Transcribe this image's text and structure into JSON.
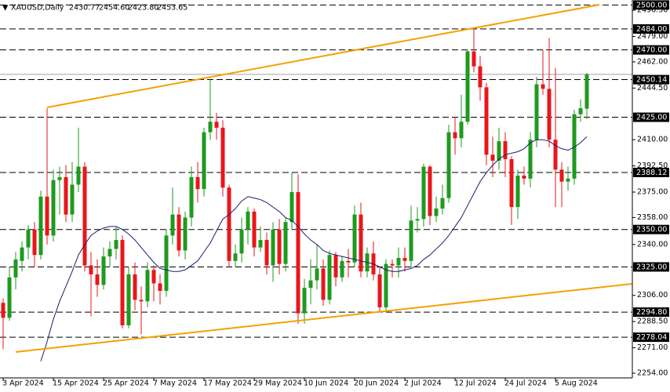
{
  "chart_data": {
    "type": "candlestick",
    "symbol": "XAUUSD,Daily",
    "header_values": [
      "2430.77",
      "2454.60",
      "2423.80",
      "2453.65"
    ],
    "categories": [
      "3 Apr 2024",
      null,
      null,
      null,
      null,
      null,
      null,
      null,
      "15 Apr 2024",
      null,
      null,
      null,
      null,
      null,
      null,
      null,
      "25 Apr 2024",
      null,
      null,
      null,
      null,
      null,
      null,
      null,
      "7 May 2024",
      null,
      null,
      null,
      null,
      null,
      null,
      null,
      "17 May 2024",
      null,
      null,
      null,
      null,
      null,
      null,
      null,
      "29 May 2024",
      null,
      null,
      null,
      null,
      null,
      null,
      null,
      "10 Jun 2024",
      null,
      null,
      null,
      null,
      null,
      null,
      null,
      "20 Jun 2024",
      null,
      null,
      null,
      null,
      null,
      null,
      null,
      "2 Jul 2024",
      null,
      null,
      null,
      null,
      null,
      null,
      null,
      "12 Jul 2024",
      null,
      null,
      null,
      null,
      null,
      null,
      null,
      "24 Jul 2024",
      null,
      null,
      null,
      null,
      null,
      null,
      null,
      "5 Aug 2024",
      null,
      null,
      null,
      null,
      null
    ],
    "open": [
      2301,
      2291,
      2318,
      2329,
      2338,
      2350,
      2333,
      2372,
      2346,
      2383,
      2385,
      2360,
      2380,
      2392,
      2326,
      2320,
      2313,
      2332,
      2337,
      2343,
      2286,
      2320,
      2303,
      2302,
      2323,
      2314,
      2309,
      2346,
      2360,
      2336,
      2358,
      2385,
      2377,
      2415,
      2422,
      2418,
      2378,
      2329,
      2334,
      2350,
      2362,
      2338,
      2343,
      2326,
      2350,
      2327,
      2355,
      2375,
      2294,
      2311,
      2316,
      2324,
      2303,
      2333,
      2318,
      2329,
      2328,
      2360,
      2322,
      2334,
      2320,
      2298,
      2327,
      2326,
      2331,
      2329,
      2356,
      2357,
      2392,
      2359,
      2364,
      2371,
      2415,
      2411,
      2422,
      2469,
      2459,
      2445,
      2400,
      2396,
      2409,
      2397,
      2365,
      2386,
      2384,
      2410,
      2447,
      2444,
      2410,
      2390,
      2382,
      2384,
      2427,
      2430.77
    ],
    "high": [
      2304,
      2325,
      2335,
      2342,
      2353,
      2355,
      2376,
      2431,
      2390,
      2392,
      2393,
      2395,
      2418,
      2395,
      2335,
      2330,
      2338,
      2342,
      2352,
      2346,
      2325,
      2328,
      2312,
      2328,
      2326,
      2320,
      2350,
      2378,
      2365,
      2362,
      2392,
      2395,
      2418,
      2451,
      2428,
      2423,
      2380,
      2340,
      2358,
      2365,
      2364,
      2352,
      2348,
      2355,
      2357,
      2358,
      2388,
      2387,
      2317,
      2330,
      2340,
      2330,
      2336,
      2335,
      2332,
      2337,
      2366,
      2368,
      2338,
      2342,
      2325,
      2330,
      2330,
      2338,
      2338,
      2366,
      2365,
      2394,
      2393,
      2372,
      2380,
      2420,
      2425,
      2440,
      2470,
      2484,
      2466,
      2448,
      2412,
      2418,
      2415,
      2399,
      2390,
      2392,
      2415,
      2452,
      2470,
      2478,
      2458,
      2395,
      2392,
      2430,
      2437,
      2454.6
    ],
    "low": [
      2270,
      2289,
      2310,
      2322,
      2330,
      2325,
      2330,
      2340,
      2342,
      2360,
      2355,
      2355,
      2375,
      2322,
      2292,
      2305,
      2310,
      2325,
      2330,
      2284,
      2284,
      2296,
      2280,
      2298,
      2302,
      2300,
      2305,
      2340,
      2332,
      2330,
      2352,
      2368,
      2372,
      2410,
      2410,
      2372,
      2325,
      2325,
      2328,
      2340,
      2332,
      2335,
      2320,
      2315,
      2320,
      2322,
      2350,
      2287,
      2287,
      2300,
      2310,
      2299,
      2300,
      2312,
      2315,
      2318,
      2325,
      2318,
      2318,
      2316,
      2295,
      2296,
      2318,
      2318,
      2322,
      2325,
      2348,
      2352,
      2353,
      2355,
      2360,
      2368,
      2400,
      2405,
      2420,
      2455,
      2436,
      2393,
      2385,
      2390,
      2385,
      2353,
      2357,
      2380,
      2378,
      2405,
      2440,
      2405,
      2365,
      2365,
      2376,
      2380,
      2422,
      2423.8
    ],
    "close": [
      2291,
      2318,
      2330,
      2338,
      2350,
      2333,
      2372,
      2346,
      2383,
      2385,
      2360,
      2380,
      2392,
      2326,
      2320,
      2313,
      2332,
      2337,
      2343,
      2286,
      2320,
      2303,
      2302,
      2323,
      2314,
      2309,
      2346,
      2360,
      2336,
      2358,
      2385,
      2377,
      2415,
      2422,
      2418,
      2378,
      2329,
      2334,
      2350,
      2362,
      2338,
      2343,
      2326,
      2350,
      2327,
      2355,
      2375,
      2294,
      2311,
      2316,
      2324,
      2303,
      2333,
      2318,
      2329,
      2328,
      2360,
      2322,
      2334,
      2320,
      2298,
      2327,
      2326,
      2331,
      2329,
      2356,
      2357,
      2392,
      2359,
      2364,
      2371,
      2415,
      2411,
      2422,
      2469,
      2459,
      2445,
      2400,
      2396,
      2409,
      2397,
      2365,
      2386,
      2384,
      2410,
      2447,
      2444,
      2410,
      2390,
      2382,
      2384,
      2427,
      2431,
      2453.65
    ],
    "up_color": "#1e9a1e",
    "down_color": "#e8161b",
    "ma": {
      "color": "#1c1c6e",
      "values": [
        null,
        null,
        null,
        null,
        null,
        null,
        2262,
        2275,
        2290,
        2302,
        2312,
        2322,
        2333,
        2340,
        2346,
        2349,
        2351,
        2352,
        2352,
        2350,
        2347,
        2343,
        2338,
        2333,
        2328,
        2324,
        2323,
        2322,
        2322,
        2323,
        2326,
        2329,
        2335,
        2341,
        2349,
        2357,
        2360,
        2364,
        2369,
        2372,
        2371,
        2370,
        2368,
        2365,
        2362,
        2358,
        2356,
        2352,
        2347,
        2343,
        2340,
        2336,
        2334,
        2333,
        2332,
        2331,
        2330,
        2329,
        2328,
        2327,
        2325,
        2323,
        2322,
        2322,
        2323,
        2324,
        2326,
        2330,
        2333,
        2337,
        2341,
        2346,
        2352,
        2358,
        2366,
        2374,
        2382,
        2388,
        2393,
        2397,
        2400,
        2401,
        2402,
        2404,
        2408,
        2410,
        2410,
        2409,
        2406,
        2404,
        2403,
        2405,
        2408,
        2412
      ]
    },
    "levels": [
      {
        "value": 2500,
        "label": "2500.00"
      },
      {
        "value": 2484,
        "label": "2484.00"
      },
      {
        "value": 2470,
        "label": "2470.00"
      },
      {
        "value": 2450.14,
        "label": "2450.14"
      },
      {
        "value": 2425,
        "label": "2425.00"
      },
      {
        "value": 2388.12,
        "label": "2388.12"
      },
      {
        "value": 2350,
        "label": "2350.00"
      },
      {
        "value": 2325,
        "label": "2325.00"
      },
      {
        "value": 2294.8,
        "label": "2294.80"
      },
      {
        "value": 2278.04,
        "label": "2278.04"
      }
    ],
    "ylim": [
      2250.86,
      2503.34
    ],
    "yticks": [
      {
        "value": 2496.5,
        "label": "2496.50"
      },
      {
        "value": 2479,
        "label": "2479.00"
      },
      {
        "value": 2462,
        "label": "2462.00"
      },
      {
        "value": 2444.5,
        "label": "2444.50"
      },
      {
        "value": 2410,
        "label": "2410.00"
      },
      {
        "value": 2392.5,
        "label": "2392.50"
      },
      {
        "value": 2375,
        "label": "2375.00"
      },
      {
        "value": 2358,
        "label": "2358.00"
      },
      {
        "value": 2340,
        "label": "2340.00"
      },
      {
        "value": 2306,
        "label": "2306.00"
      },
      {
        "value": 2288.5,
        "label": "2288.50"
      },
      {
        "value": 2271,
        "label": "2271.00"
      },
      {
        "value": 2254,
        "label": "2254.00"
      }
    ]
  }
}
